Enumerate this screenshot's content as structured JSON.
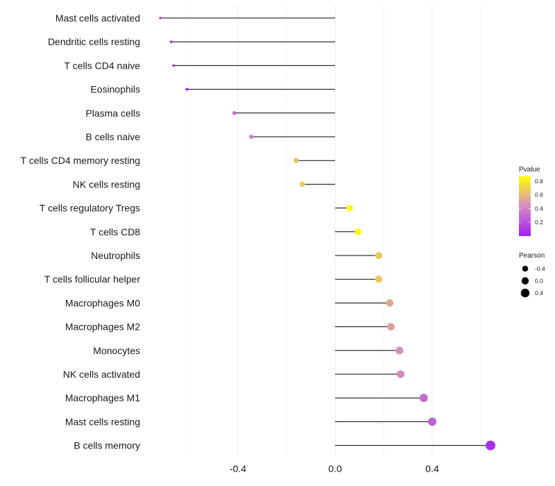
{
  "chart_data": {
    "type": "lollipop",
    "title": "",
    "xlabel": "",
    "ylabel": "",
    "xlim": [
      -0.75,
      0.78
    ],
    "x_ticks": [
      {
        "value": -0.4,
        "label": "-0.4"
      },
      {
        "value": 0.0,
        "label": "0.0"
      },
      {
        "value": 0.4,
        "label": "0.4"
      }
    ],
    "points": [
      {
        "category": "Mast cells activated",
        "pearson": -0.72,
        "pvalue": 0.003
      },
      {
        "category": "Dendritic cells resting",
        "pearson": -0.675,
        "pvalue": 0.01
      },
      {
        "category": "T cells CD4 naive",
        "pearson": -0.665,
        "pvalue": 0.02
      },
      {
        "category": "Eosinophils",
        "pearson": -0.61,
        "pvalue": 0.03
      },
      {
        "category": "Plasma cells",
        "pearson": -0.415,
        "pvalue": 0.3
      },
      {
        "category": "B cells naive",
        "pearson": -0.345,
        "pvalue": 0.38
      },
      {
        "category": "T cells CD4 memory resting",
        "pearson": -0.16,
        "pvalue": 0.65
      },
      {
        "category": "NK cells resting",
        "pearson": -0.135,
        "pvalue": 0.68
      },
      {
        "category": "T cells regulatory  Tregs ",
        "pearson": 0.06,
        "pvalue": 0.87
      },
      {
        "category": "T cells CD8",
        "pearson": 0.095,
        "pvalue": 0.85
      },
      {
        "category": "Neutrophils",
        "pearson": 0.18,
        "pvalue": 0.66
      },
      {
        "category": "T cells follicular helper",
        "pearson": 0.18,
        "pvalue": 0.66
      },
      {
        "category": "Macrophages M0",
        "pearson": 0.225,
        "pvalue": 0.55
      },
      {
        "category": "Macrophages M2",
        "pearson": 0.23,
        "pvalue": 0.52
      },
      {
        "category": "Monocytes",
        "pearson": 0.265,
        "pvalue": 0.45
      },
      {
        "category": "NK cells activated",
        "pearson": 0.27,
        "pvalue": 0.44
      },
      {
        "category": "Macrophages M1",
        "pearson": 0.365,
        "pvalue": 0.3
      },
      {
        "category": "Mast cells resting",
        "pearson": 0.4,
        "pvalue": 0.27
      },
      {
        "category": "B cells memory",
        "pearson": 0.64,
        "pvalue": 0.06
      }
    ],
    "color_legend": {
      "title": "Pvalue",
      "ticks": [
        {
          "value": 0.8,
          "label": "0.8"
        },
        {
          "value": 0.6,
          "label": "0.6"
        },
        {
          "value": 0.4,
          "label": "0.4"
        },
        {
          "value": 0.2,
          "label": "0.2"
        }
      ],
      "range": [
        0.0,
        0.87
      ],
      "low_color": "#a020f0",
      "mid_color": "#d58cc3",
      "high_color": "#ffff00"
    },
    "size_legend": {
      "title": "Pearson",
      "entries": [
        {
          "value": -0.4,
          "label": "-0.4"
        },
        {
          "value": 0.0,
          "label": "0.0"
        },
        {
          "value": 0.4,
          "label": "0.4"
        }
      ],
      "range": [
        -0.72,
        0.64
      ]
    },
    "grid": true,
    "colors": {
      "stem": "#000000",
      "grid": "#ebebeb"
    }
  }
}
